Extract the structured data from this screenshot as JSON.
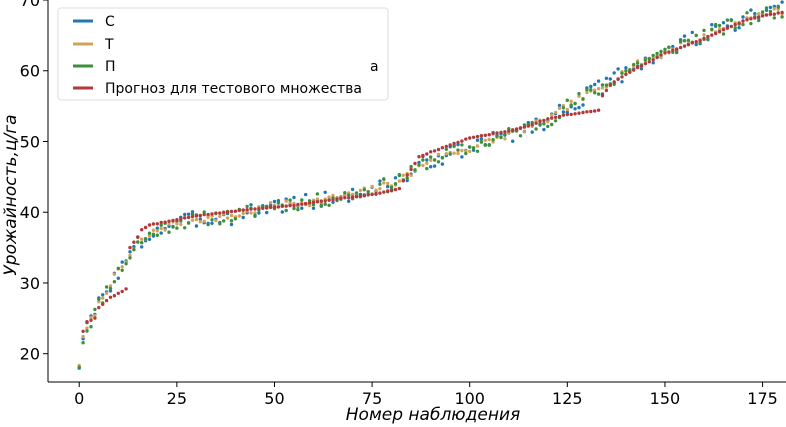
{
  "chart_data": {
    "type": "scatter",
    "xlabel": "Номер  наблюдения",
    "ylabel": "Урожайность,ц/га",
    "xlim": [
      -8,
      181
    ],
    "ylim": [
      16,
      70
    ],
    "xticks": [
      0,
      25,
      50,
      75,
      100,
      125,
      150,
      175
    ],
    "yticks": [
      20,
      30,
      40,
      50,
      60,
      70
    ],
    "grid": false,
    "legend_position": "top-left",
    "legend_visible_text": [
      "С",
      "Т",
      "П",
      "а",
      "Прогноз для тестового множества"
    ],
    "series": [
      {
        "color": "#1f77b4",
        "segments": [
          [
            0,
            18.6
          ],
          [
            1,
            22
          ],
          [
            2,
            23.5
          ],
          [
            5,
            27
          ],
          [
            8,
            30
          ],
          [
            12,
            33
          ],
          [
            15,
            35.5
          ],
          [
            20,
            37.5
          ],
          [
            25,
            38.5
          ],
          [
            30,
            39
          ],
          [
            40,
            39.5
          ],
          [
            50,
            41
          ],
          [
            60,
            41.5
          ],
          [
            70,
            42.5
          ],
          [
            80,
            44
          ],
          [
            85,
            45.5
          ],
          [
            90,
            47.5
          ],
          [
            100,
            49
          ],
          [
            110,
            51
          ],
          [
            120,
            53
          ],
          [
            125,
            55
          ],
          [
            130,
            56.5
          ],
          [
            135,
            58
          ],
          [
            140,
            60
          ],
          [
            145,
            61.5
          ],
          [
            150,
            62.5
          ],
          [
            155,
            64
          ],
          [
            160,
            65
          ],
          [
            165,
            66
          ],
          [
            170,
            67
          ],
          [
            175,
            68
          ],
          [
            180,
            68.5
          ]
        ],
        "jitter": 1.2,
        "seed": 3
      },
      {
        "color": "#d4a15a",
        "segments": [
          [
            0,
            18.6
          ],
          [
            1,
            22
          ],
          [
            2,
            23.5
          ],
          [
            5,
            27
          ],
          [
            8,
            30
          ],
          [
            12,
            33
          ],
          [
            15,
            35.5
          ],
          [
            20,
            37.5
          ],
          [
            25,
            38.5
          ],
          [
            30,
            39
          ],
          [
            40,
            39.5
          ],
          [
            50,
            41
          ],
          [
            60,
            41.5
          ],
          [
            70,
            42.5
          ],
          [
            80,
            44
          ],
          [
            85,
            45.5
          ],
          [
            90,
            47.5
          ],
          [
            100,
            49
          ],
          [
            110,
            51
          ],
          [
            120,
            53
          ],
          [
            125,
            55
          ],
          [
            130,
            56.5
          ],
          [
            135,
            58
          ],
          [
            140,
            60
          ],
          [
            145,
            61.5
          ],
          [
            150,
            62.5
          ],
          [
            155,
            64
          ],
          [
            160,
            65
          ],
          [
            165,
            66
          ],
          [
            170,
            67
          ],
          [
            175,
            68
          ],
          [
            180,
            68.5
          ]
        ],
        "jitter": 0.5,
        "seed": 7
      },
      {
        "color": "#3d8f3d",
        "segments": [
          [
            0,
            18.6
          ],
          [
            1,
            22
          ],
          [
            2,
            23.5
          ],
          [
            5,
            27
          ],
          [
            8,
            30
          ],
          [
            12,
            33
          ],
          [
            15,
            35.5
          ],
          [
            20,
            37.5
          ],
          [
            25,
            38.5
          ],
          [
            30,
            39
          ],
          [
            40,
            39.5
          ],
          [
            50,
            41
          ],
          [
            60,
            41.5
          ],
          [
            70,
            42.5
          ],
          [
            80,
            44
          ],
          [
            85,
            45.5
          ],
          [
            90,
            47.5
          ],
          [
            100,
            49
          ],
          [
            110,
            51
          ],
          [
            120,
            53
          ],
          [
            125,
            55
          ],
          [
            130,
            56.5
          ],
          [
            135,
            58
          ],
          [
            140,
            60
          ],
          [
            145,
            61.5
          ],
          [
            150,
            62.5
          ],
          [
            155,
            64
          ],
          [
            160,
            65
          ],
          [
            165,
            66
          ],
          [
            170,
            67
          ],
          [
            175,
            68
          ],
          [
            180,
            68.5
          ]
        ],
        "jitter": 1.0,
        "seed": 11
      },
      {
        "name": "Прогноз для тестового множества",
        "color": "#b03a3a",
        "segments": [
          [
            1,
            23.2
          ],
          [
            2,
            24.5
          ],
          [
            4,
            25
          ],
          [
            5,
            26.5
          ],
          [
            6,
            27
          ],
          [
            8,
            28
          ],
          [
            10,
            28.5
          ],
          [
            12,
            29.2
          ],
          [
            13,
            35
          ],
          [
            15,
            36.5
          ],
          [
            16,
            37.5
          ],
          [
            18,
            38.2
          ],
          [
            22,
            38.6
          ],
          [
            30,
            39.5
          ],
          [
            45,
            40.5
          ],
          [
            55,
            41
          ],
          [
            65,
            41.8
          ],
          [
            75,
            42.5
          ],
          [
            82,
            43.3
          ],
          [
            83,
            44.5
          ],
          [
            85,
            46
          ],
          [
            87,
            47.8
          ],
          [
            90,
            48.5
          ],
          [
            95,
            49.5
          ],
          [
            100,
            50.5
          ],
          [
            110,
            51.5
          ],
          [
            115,
            52.2
          ],
          [
            120,
            53.2
          ],
          [
            125,
            53.8
          ],
          [
            133,
            54.4
          ],
          [
            134,
            56.5
          ],
          [
            136,
            58
          ],
          [
            140,
            59.5
          ],
          [
            145,
            61
          ],
          [
            150,
            62.5
          ],
          [
            155,
            63.5
          ],
          [
            160,
            64.5
          ],
          [
            165,
            65.8
          ],
          [
            170,
            67
          ],
          [
            175,
            67.8
          ],
          [
            180,
            68.2
          ]
        ],
        "jitter": 0.05,
        "seed": 5
      }
    ]
  }
}
